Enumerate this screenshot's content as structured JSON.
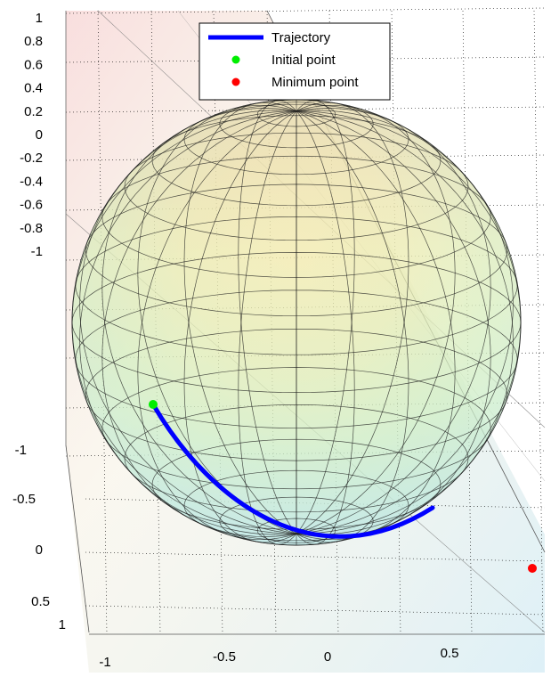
{
  "chart_data": {
    "type": "3d-surface",
    "title": "",
    "xlabel": "",
    "ylabel": "",
    "zlabel": "",
    "grid": true,
    "legend_placement": "top",
    "xlim": [
      -1,
      1
    ],
    "ylim": [
      -1,
      1
    ],
    "zlim": [
      -1,
      1
    ],
    "x_ticks": [
      "-1",
      "-0.5",
      "0",
      "0.5"
    ],
    "y_ticks": [
      "-1",
      "-0.5",
      "0",
      "0.5",
      "1"
    ],
    "z_ticks": [
      "1",
      "0.8",
      "0.6",
      "0.4",
      "0.2",
      "0",
      "-0.2",
      "-0.4",
      "-0.6",
      "-0.8",
      "-1"
    ],
    "surface": {
      "name": "Unit sphere",
      "radius": 1,
      "meridians": 24,
      "parallels": 18
    },
    "legend": [
      {
        "label": "Trajectory",
        "marker": "line",
        "color": "#0000ff"
      },
      {
        "label": "Initial point",
        "marker": "dot",
        "color": "#00ee00"
      },
      {
        "label": "Minimum point",
        "marker": "dot",
        "color": "#ff0000"
      }
    ],
    "series": [
      {
        "name": "Trajectory",
        "kind": "curve",
        "color": "#0000ff"
      },
      {
        "name": "Initial point",
        "kind": "point",
        "color": "#00ee00"
      },
      {
        "name": "Minimum point",
        "kind": "point",
        "color": "#ff0000"
      }
    ]
  }
}
